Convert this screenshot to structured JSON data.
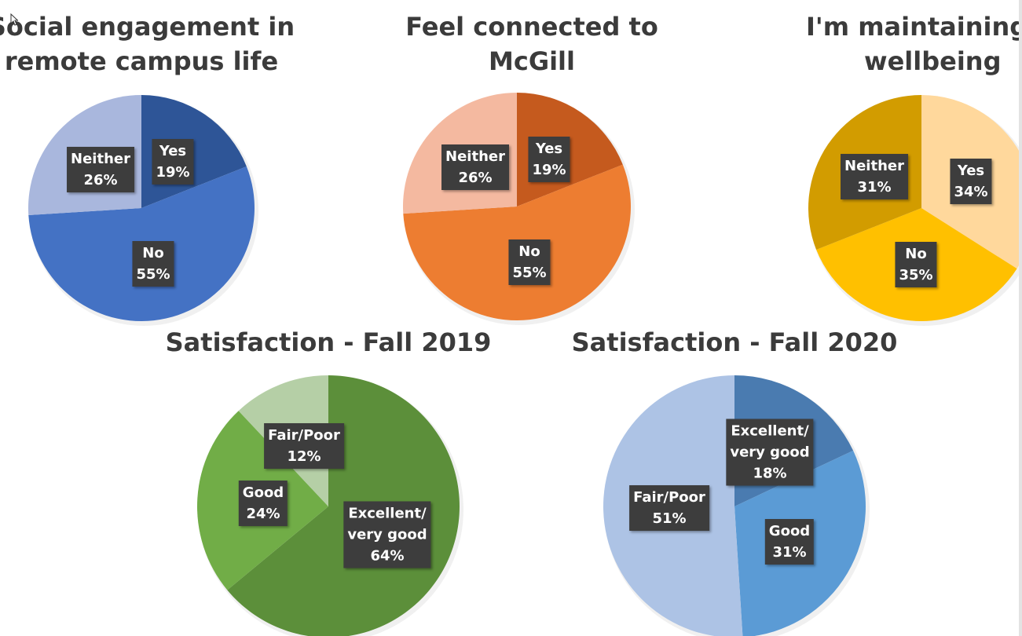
{
  "chart_data": [
    {
      "id": "c1",
      "type": "pie",
      "title": [
        "Social engagement in",
        "remote campus life"
      ],
      "slices": [
        {
          "name": "Yes",
          "label_lines": [
            "Yes",
            "19%"
          ],
          "value": 19,
          "color": "#2e5597"
        },
        {
          "name": "No",
          "label_lines": [
            "No",
            "55%"
          ],
          "value": 55,
          "color": "#4472c4"
        },
        {
          "name": "Neither",
          "label_lines": [
            "Neither",
            "26%"
          ],
          "value": 26,
          "color": "#a9b7dd"
        }
      ]
    },
    {
      "id": "c2",
      "type": "pie",
      "title": [
        "Feel connected to",
        "McGill"
      ],
      "slices": [
        {
          "name": "Yes",
          "label_lines": [
            "Yes",
            "19%"
          ],
          "value": 19,
          "color": "#c55a1e"
        },
        {
          "name": "No",
          "label_lines": [
            "No",
            "55%"
          ],
          "value": 55,
          "color": "#ed7d31"
        },
        {
          "name": "Neither",
          "label_lines": [
            "Neither",
            "26%"
          ],
          "value": 26,
          "color": "#f4b9a0"
        }
      ]
    },
    {
      "id": "c3",
      "type": "pie",
      "title": [
        "I'm maintaining m",
        "wellbeing"
      ],
      "slices": [
        {
          "name": "Yes",
          "label_lines": [
            "Yes",
            "34%"
          ],
          "value": 34,
          "color": "#ffd89c"
        },
        {
          "name": "No",
          "label_lines": [
            "No",
            "35%"
          ],
          "value": 35,
          "color": "#ffc000"
        },
        {
          "name": "Neither",
          "label_lines": [
            "Neither",
            "31%"
          ],
          "value": 31,
          "color": "#d29c00"
        }
      ]
    },
    {
      "id": "c4",
      "type": "pie",
      "title": [
        "Satisfaction - Fall 2019"
      ],
      "slices": [
        {
          "name": "Excellent/very good",
          "label_lines": [
            "Excellent/",
            "very good",
            "64%"
          ],
          "value": 64,
          "color": "#5c8f3a"
        },
        {
          "name": "Good",
          "label_lines": [
            "Good",
            "24%"
          ],
          "value": 24,
          "color": "#71ad47"
        },
        {
          "name": "Fair/Poor",
          "label_lines": [
            "Fair/Poor",
            "12%"
          ],
          "value": 12,
          "color": "#b5cfa6"
        }
      ]
    },
    {
      "id": "c5",
      "type": "pie",
      "title": [
        "Satisfaction - Fall 2020"
      ],
      "slices": [
        {
          "name": "Excellent/very good",
          "label_lines": [
            "Excellent/",
            "very good",
            "18%"
          ],
          "value": 18,
          "color": "#4a7bb0"
        },
        {
          "name": "Good",
          "label_lines": [
            "Good",
            "31%"
          ],
          "value": 31,
          "color": "#5b9bd5"
        },
        {
          "name": "Fair/Poor",
          "label_lines": [
            "Fair/Poor",
            "51%"
          ],
          "value": 51,
          "color": "#adc3e5"
        }
      ]
    }
  ]
}
